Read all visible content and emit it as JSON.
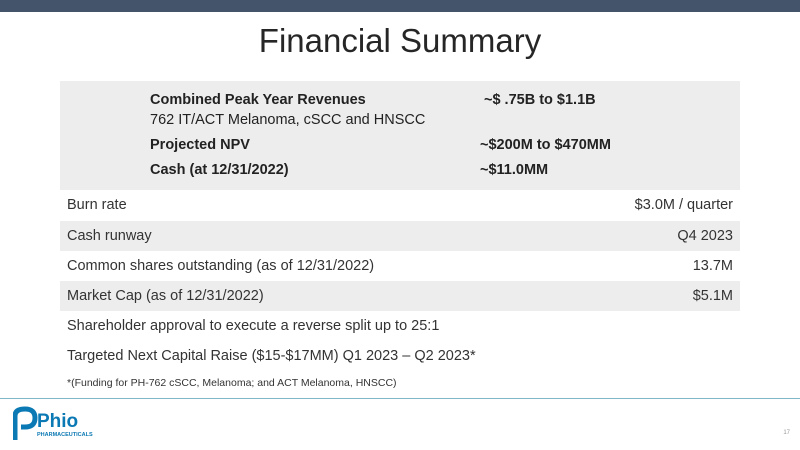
{
  "slide": {
    "title": "Financial Summary",
    "highlights": {
      "revenue_label": "Combined Peak Year Revenues",
      "revenue_value": "~$ .75B to $1.1B",
      "revenue_sub": "762 IT/ACT Melanoma, cSCC and HNSCC",
      "npv_label": "Projected NPV",
      "npv_value": "~$200M to $470MM",
      "cash_label": "Cash (at 12/31/2022)",
      "cash_value": "~$11.0MM"
    },
    "rows": [
      {
        "label": "Burn rate",
        "value": "$3.0M / quarter"
      },
      {
        "label": "Cash runway",
        "value": "Q4 2023"
      },
      {
        "label": "Common shares outstanding (as of 12/31/2022)",
        "value": "13.7M"
      },
      {
        "label": "Market Cap (as of 12/31/2022)",
        "value": "$5.1M"
      },
      {
        "label": "Shareholder approval to execute a reverse split up to 25:1",
        "value": ""
      },
      {
        "label": "Targeted Next Capital Raise  ($15-$17MM)   Q1 2023 – Q2 2023*",
        "value": ""
      }
    ],
    "footnote": "*(Funding for PH-762 cSCC, Melanoma; and ACT Melanoma, HNSCC)",
    "logo_text": "Phio",
    "logo_subtext": "PHARMACEUTICALS",
    "page_number": "17"
  },
  "colors": {
    "top_bar": "#44546a",
    "shade": "#ededed",
    "brand_blue": "#0b79b3"
  }
}
